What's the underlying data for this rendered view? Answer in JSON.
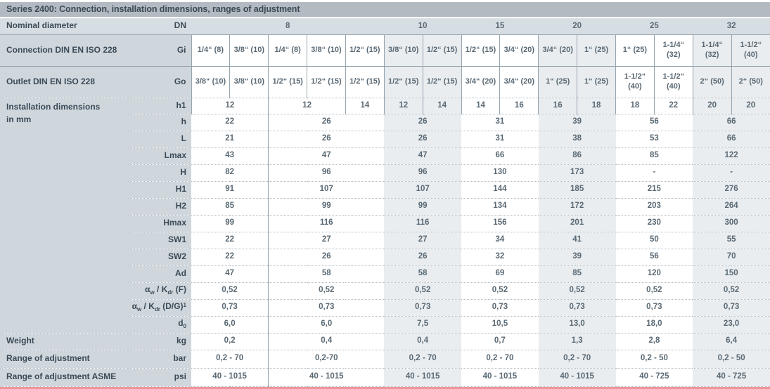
{
  "title": "Series 2400: Connection, installation dimensions, ranges of adjustment",
  "colors": {
    "title_bg": "#b3bac1",
    "label_bg": "#cfd7dd",
    "dn_row_bg": "#d7dee3",
    "group_shade": "#e9edf0",
    "label_text": "#3b4a56",
    "value_text": "#5a6974",
    "bottom_rule": "#f0949a"
  },
  "table": {
    "dn_row": {
      "label": "Nominal diameter",
      "unit": "DN",
      "cells": [
        {
          "v": "8",
          "span": 5
        },
        {
          "v": "10",
          "span": 2
        },
        {
          "v": "15",
          "span": 2
        },
        {
          "v": "20",
          "span": 2
        },
        {
          "v": "25",
          "span": 2
        },
        {
          "v": "32",
          "span": 2
        }
      ]
    },
    "gi_row": {
      "label": "Connection DIN EN ISO 228",
      "unit": "Gi",
      "cells": [
        "1/4“ (8)",
        "3/8“ (10)",
        "1/4“ (8)",
        "3/8“ (10)",
        "1/2“ (15)",
        "3/8“ (10)",
        "1/2“ (15)",
        "1/2“ (15)",
        "3/4“ (20)",
        "3/4“ (20)",
        "1“ (25)",
        "1“ (25)",
        "1-1/4“ (32)",
        "1-1/4“ (32)",
        "1-1/2“ (40)"
      ]
    },
    "go_row": {
      "label": "Outlet DIN EN ISO 228",
      "unit": "Go",
      "cells": [
        "3/8“ (10)",
        "3/8“ (10)",
        "1/2“ (15)",
        "1/2“ (15)",
        "1/2“ (15)",
        "1/2“ (15)",
        "1/2“ (15)",
        "3/4“ (20)",
        "3/4“ (20)",
        "1“ (25)",
        "1“ (25)",
        "1-1/2“ (40)",
        "1-1/2“ (40)",
        "2“ (50)",
        "2“ (50)"
      ]
    },
    "dim_label_line1": "Installation dimensions",
    "dim_label_line2": "in mm",
    "h1_row": {
      "unit": "h1",
      "cells": [
        {
          "v": "12",
          "span": 2
        },
        {
          "v": "12",
          "span": 2
        },
        {
          "v": "14",
          "span": 1
        },
        {
          "v": "12",
          "span": 1
        },
        {
          "v": "14",
          "span": 1
        },
        {
          "v": "14",
          "span": 1
        },
        {
          "v": "16",
          "span": 1
        },
        {
          "v": "16",
          "span": 1
        },
        {
          "v": "18",
          "span": 1
        },
        {
          "v": "18",
          "span": 1
        },
        {
          "v": "22",
          "span": 1
        },
        {
          "v": "20",
          "span": 1
        },
        {
          "v": "20",
          "span": 1
        }
      ]
    },
    "group_spans": [
      2,
      3,
      2,
      2,
      2,
      2,
      2
    ],
    "dim_rows": [
      {
        "unit": "h",
        "values": [
          "22",
          "26",
          "26",
          "31",
          "39",
          "56",
          "66"
        ]
      },
      {
        "unit": "L",
        "values": [
          "21",
          "26",
          "26",
          "31",
          "38",
          "53",
          "66"
        ]
      },
      {
        "unit": "Lmax",
        "values": [
          "43",
          "47",
          "47",
          "66",
          "86",
          "85",
          "122"
        ]
      },
      {
        "unit": "H",
        "values": [
          "82",
          "96",
          "96",
          "130",
          "173",
          "-",
          "-"
        ]
      },
      {
        "unit": "H1",
        "values": [
          "91",
          "107",
          "107",
          "144",
          "185",
          "215",
          "276"
        ]
      },
      {
        "unit": "H2",
        "values": [
          "85",
          "99",
          "99",
          "134",
          "172",
          "203",
          "264"
        ]
      },
      {
        "unit": "Hmax",
        "values": [
          "99",
          "116",
          "116",
          "156",
          "201",
          "230",
          "300"
        ]
      },
      {
        "unit": "SW1",
        "values": [
          "22",
          "27",
          "27",
          "34",
          "41",
          "50",
          "55"
        ]
      },
      {
        "unit": "SW2",
        "values": [
          "22",
          "26",
          "26",
          "32",
          "39",
          "56",
          "70"
        ]
      },
      {
        "unit": "Ad",
        "values": [
          "47",
          "58",
          "58",
          "69",
          "85",
          "120",
          "150"
        ]
      },
      {
        "unit_parts": [
          {
            "t": "α"
          },
          {
            "t": "w",
            "s": "sub"
          },
          {
            "t": " / K"
          },
          {
            "t": "dr",
            "s": "sub"
          },
          {
            "t": " (F)"
          }
        ],
        "values": [
          "0,52",
          "0,52",
          "0,52",
          "0,52",
          "0,52",
          "0,52",
          "0,52"
        ]
      },
      {
        "unit_parts": [
          {
            "t": "α"
          },
          {
            "t": "w",
            "s": "sub"
          },
          {
            "t": " / K"
          },
          {
            "t": "dr",
            "s": "sub"
          },
          {
            "t": " (D/G)"
          },
          {
            "t": "1",
            "s": "sup"
          }
        ],
        "values": [
          "0,73",
          "0,73",
          "0,73",
          "0,73",
          "0,73",
          "0,73",
          "0,73"
        ]
      },
      {
        "unit_parts": [
          {
            "t": "d"
          },
          {
            "t": "0",
            "s": "sub"
          }
        ],
        "values": [
          "6,0",
          "6,0",
          "7,5",
          "10,5",
          "13,0",
          "18,0",
          "23,0"
        ]
      }
    ],
    "weight_row": {
      "label": "Weight",
      "unit": "kg",
      "values": [
        "0,2",
        "0,4",
        "0,4",
        "0,7",
        "1,3",
        "2,8",
        "6,4"
      ]
    },
    "bar_row": {
      "label": "Range of adjustment",
      "unit": "bar",
      "values": [
        "0,2 - 70",
        "0,2-70",
        "0,2 - 70",
        "0,2 - 70",
        "0,2 - 70",
        "0,2 - 50",
        "0,2 - 50"
      ]
    },
    "psi_row": {
      "label": "Range of adjustment ASME",
      "unit": "psi",
      "values": [
        "40 - 1015",
        "40 - 1015",
        "40 - 1015",
        "40 - 1015",
        "40 - 1015",
        "40 - 725",
        "40 - 725"
      ]
    }
  }
}
